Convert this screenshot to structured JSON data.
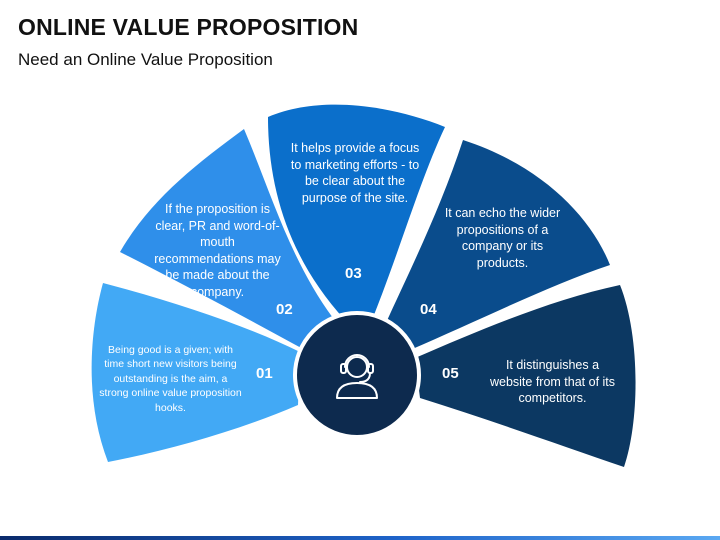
{
  "title": "ONLINE VALUE PROPOSITION",
  "subtitle": "Need an Online Value Proposition",
  "center_icon": "headset-user-icon",
  "segments": [
    {
      "number": "01",
      "text": "Being good is a given; with time short new visitors being outstanding is the aim, a strong online value proposition hooks.",
      "color": "#42A9F5"
    },
    {
      "number": "02",
      "text": "If the proposition is clear, PR and word-of-mouth recommendations may be made about the company.",
      "color": "#2F8FEA"
    },
    {
      "number": "03",
      "text": "It helps provide a focus to marketing efforts - to be clear about the purpose of the site.",
      "color": "#0B6FCB"
    },
    {
      "number": "04",
      "text": "It can echo the wider propositions of a company or its products.",
      "color": "#0A4C8C"
    },
    {
      "number": "05",
      "text": "It distinguishes a website from that of its competitors.",
      "color": "#0C3862"
    }
  ],
  "colors": {
    "center_circle": "#0D2A4E",
    "bottom_bar_start": "#0a2a6b",
    "bottom_bar_end": "#5aa8f2"
  }
}
